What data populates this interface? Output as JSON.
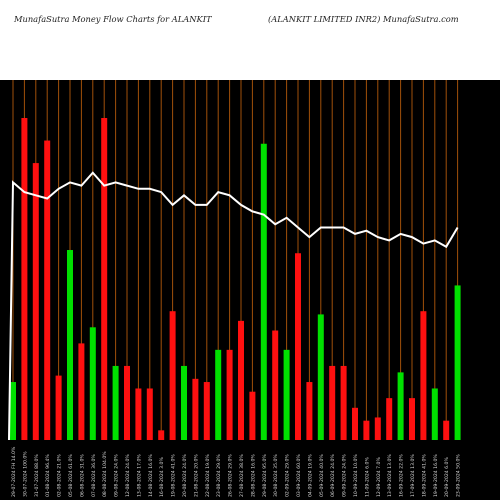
{
  "header": {
    "title_left": "MunafaSutra  Money Flow  Charts for ALANKIT",
    "title_right": "(ALANKIT LIMITED INR2) MunafaSutra.com"
  },
  "colors": {
    "background": "#000000",
    "grid": "#a0500a",
    "up": "#00e000",
    "down": "#ff1010",
    "line": "#ffffff"
  },
  "chart_data": {
    "type": "bar",
    "ylim": [
      0,
      1
    ],
    "grid": "vertical",
    "series": [
      {
        "kind": "bar",
        "values": [
          0.18,
          1.0,
          0.86,
          0.93,
          0.2,
          0.59,
          0.3,
          0.35,
          1.0,
          0.23,
          0.23,
          0.16,
          0.16,
          0.03,
          0.4,
          0.23,
          0.19,
          0.18,
          0.28,
          0.28,
          0.37,
          0.15,
          0.92,
          0.34,
          0.28,
          0.58,
          0.18,
          0.39,
          0.23,
          0.23,
          0.1,
          0.06,
          0.07,
          0.13,
          0.21,
          0.13,
          0.4,
          0.16,
          0.06,
          0.48
        ],
        "colors": [
          "up",
          "down",
          "down",
          "down",
          "down",
          "up",
          "down",
          "up",
          "down",
          "up",
          "down",
          "down",
          "down",
          "down",
          "down",
          "up",
          "down",
          "down",
          "up",
          "down",
          "down",
          "down",
          "up",
          "down",
          "up",
          "down",
          "down",
          "up",
          "down",
          "down",
          "down",
          "down",
          "down",
          "down",
          "up",
          "down",
          "down",
          "up",
          "down",
          "up"
        ]
      },
      {
        "kind": "line",
        "values": [
          0.8,
          0.77,
          0.76,
          0.75,
          0.78,
          0.8,
          0.79,
          0.83,
          0.79,
          0.8,
          0.79,
          0.78,
          0.78,
          0.77,
          0.73,
          0.76,
          0.73,
          0.73,
          0.77,
          0.76,
          0.73,
          0.71,
          0.7,
          0.67,
          0.69,
          0.66,
          0.63,
          0.66,
          0.66,
          0.66,
          0.64,
          0.65,
          0.63,
          0.62,
          0.64,
          0.63,
          0.61,
          0.62,
          0.6,
          0.66
        ]
      }
    ],
    "x_tick_labels": [
      "29-07-2024 FH 14.0%",
      "30-07-2024 100.0%",
      "31-07-2024 88.0%",
      "01-08-2024 96.4%",
      "02-08-2024 21.0%",
      "05-08-2024 61.0%",
      "06-08-2024 31.0%",
      "07-08-2024 36.0%",
      "08-08-2024 104.0%",
      "09-08-2024 24.0%",
      "12-08-2024 24.0%",
      "13-08-2024 17.0%",
      "14-08-2024 16.0%",
      "16-08-2024 3.0%",
      "19-08-2024 41.0%",
      "20-08-2024 24.0%",
      "21-08-2024 20.0%",
      "22-08-2024 19.0%",
      "23-08-2024 29.0%",
      "26-08-2024 29.0%",
      "27-08-2024 38.0%",
      "28-08-2024 16.0%",
      "29-08-2024 95.0%",
      "30-08-2024 35.0%",
      "02-09-2024 29.0%",
      "03-09-2024 60.0%",
      "04-09-2024 19.0%",
      "05-09-2024 40.0%",
      "06-09-2024 24.0%",
      "09-09-2024 24.0%",
      "10-09-2024 10.0%",
      "11-09-2024 6.0%",
      "12-09-2024 7.0%",
      "13-09-2024 13.0%",
      "16-09-2024 22.0%",
      "17-09-2024 13.0%",
      "18-09-2024 41.0%",
      "19-09-2024 16.0%",
      "20-09-2024 6.0%",
      "23-09-2024 50.0%"
    ]
  }
}
